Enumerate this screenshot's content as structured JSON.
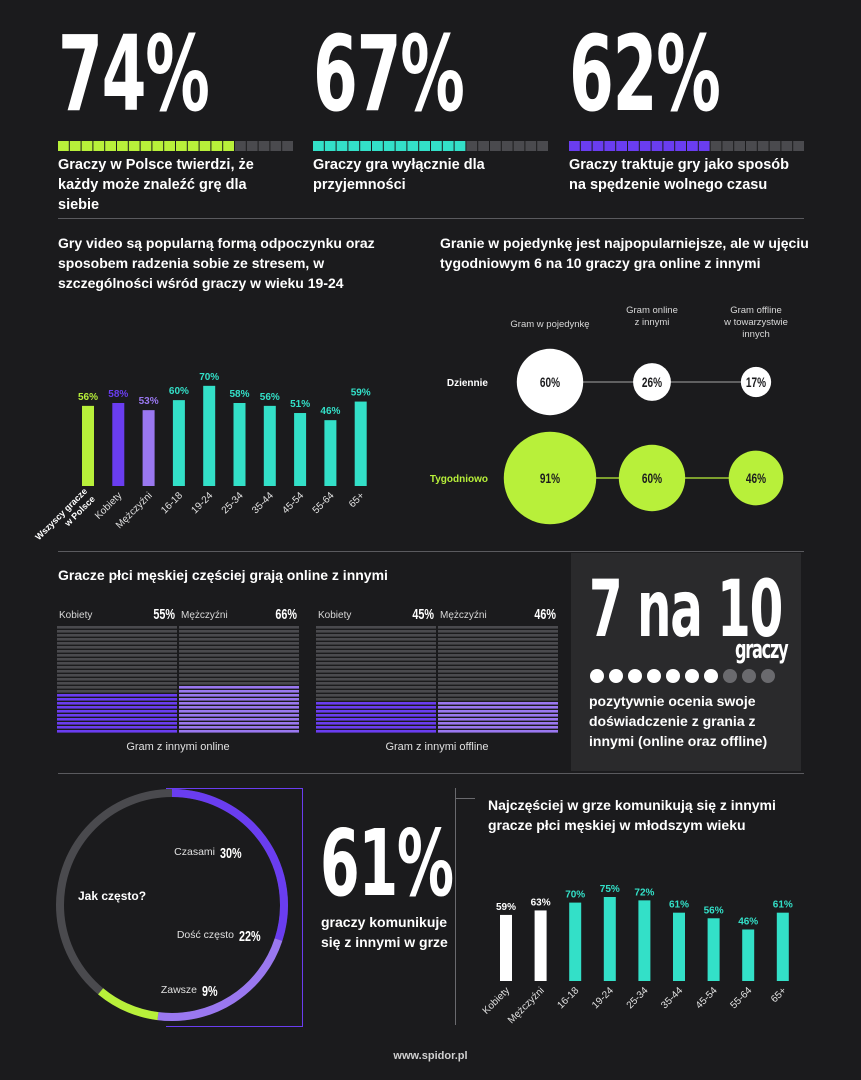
{
  "top_stats": [
    {
      "value": "74%",
      "text": "Graczy w Polsce twierdzi, że każdy może znaleźć grę dla siebie",
      "fraction": 0.74,
      "color": "#b8f03a"
    },
    {
      "value": "67%",
      "text": "Graczy gra wyłącznie dla przyjemności",
      "fraction": 0.67,
      "color": "#33e0c8"
    },
    {
      "value": "62%",
      "text": "Graczy traktuje gry jako sposób na spędzenie wolnego czasu",
      "fraction": 0.62,
      "color": "#6a3df0"
    }
  ],
  "section_relax": {
    "title": "Gry video są popularną formą odpoczynku oraz sposobem radzenia sobie ze stresem, w szczególności wśród graczy w wieku 19-24"
  },
  "section_solo": {
    "title": "Granie w pojedynkę jest najpopularniejsze, ale w ujęciu tygodniowym 6 na 10 graczy gra online z innymi"
  },
  "section_gender": {
    "title": "Gracze płci męskiej częściej grają online z innymi",
    "online_label": "Gram z innymi online",
    "offline_label": "Gram z innymi offline"
  },
  "seven_of_ten": {
    "big": "7 na 10",
    "unit": "graczy",
    "text": "pozytywnie ocenia swoje doświadczenie z grania z innymi (online oraz offline)",
    "filled": 7,
    "total": 10
  },
  "sixty_one": {
    "big": "61%",
    "text": "graczy komunikuje się z innymi w grze"
  },
  "section_comm": {
    "title": "Najczęściej w grze komunikują się z innymi gracze płci męskiej w młodszym wieku"
  },
  "footer": "www.spidor.pl",
  "colors": {
    "lime": "#b8f03a",
    "teal": "#33e0c8",
    "purple": "#6a3df0",
    "lilac": "#9a78f0",
    "white": "#ffffff",
    "gray": "#444448"
  },
  "chart_data": [
    {
      "type": "bar",
      "categories": [
        "Wszyscy gracze w Polsce",
        "Kobiety",
        "Mężczyźni",
        "16-18",
        "19-24",
        "25-34",
        "35-44",
        "45-54",
        "55-64",
        "65+"
      ],
      "values": [
        56,
        58,
        53,
        60,
        70,
        58,
        56,
        51,
        46,
        59
      ],
      "labels": [
        "56%",
        "58%",
        "53%",
        "60%",
        "70%",
        "58%",
        "56%",
        "51%",
        "46%",
        "59%"
      ],
      "bar_colors": [
        "#b8f03a",
        "#6a3df0",
        "#9a78f0",
        "#33e0c8",
        "#33e0c8",
        "#33e0c8",
        "#33e0c8",
        "#33e0c8",
        "#33e0c8",
        "#33e0c8"
      ],
      "ylim": [
        0,
        100
      ]
    },
    {
      "type": "bubble",
      "columns": [
        "Gram w pojedynkę",
        "Gram online z innymi",
        "Gram offline w towarzystwie innych"
      ],
      "rows": [
        {
          "name": "Dziennie",
          "values": [
            60,
            26,
            17
          ],
          "labels": [
            "60%",
            "26%",
            "17%"
          ]
        },
        {
          "name": "Tygodniowo",
          "values": [
            91,
            60,
            46
          ],
          "labels": [
            "91%",
            "60%",
            "46%"
          ]
        }
      ]
    },
    {
      "type": "bar",
      "groups": [
        {
          "label": "Gram z innymi online",
          "series": [
            {
              "name": "Kobiety",
              "value": 55,
              "label": "55%"
            },
            {
              "name": "Mężczyźni",
              "value": 66,
              "label": "66%"
            }
          ]
        },
        {
          "label": "Gram z innymi offline",
          "series": [
            {
              "name": "Kobiety",
              "value": 45,
              "label": "45%"
            },
            {
              "name": "Mężczyźni",
              "value": 46,
              "label": "46%"
            }
          ]
        }
      ]
    },
    {
      "type": "pie",
      "center_label": "Jak często?",
      "slices": [
        {
          "name": "Czasami",
          "value": 30,
          "label": "30%",
          "color": "#6a3df0"
        },
        {
          "name": "Dość często",
          "value": 22,
          "label": "22%",
          "color": "#9a78f0"
        },
        {
          "name": "Zawsze",
          "value": 9,
          "label": "9%",
          "color": "#b8f03a"
        }
      ]
    },
    {
      "type": "bar",
      "categories": [
        "Kobiety",
        "Mężczyźni",
        "16-18",
        "19-24",
        "25-34",
        "35-44",
        "45-54",
        "55-64",
        "65+"
      ],
      "values": [
        59,
        63,
        70,
        75,
        72,
        61,
        56,
        46,
        61
      ],
      "labels": [
        "59%",
        "63%",
        "70%",
        "75%",
        "72%",
        "61%",
        "56%",
        "46%",
        "61%"
      ],
      "bar_colors": [
        "#ffffff",
        "#ffffff",
        "#33e0c8",
        "#33e0c8",
        "#33e0c8",
        "#33e0c8",
        "#33e0c8",
        "#33e0c8",
        "#33e0c8"
      ],
      "ylim": [
        0,
        100
      ]
    }
  ]
}
